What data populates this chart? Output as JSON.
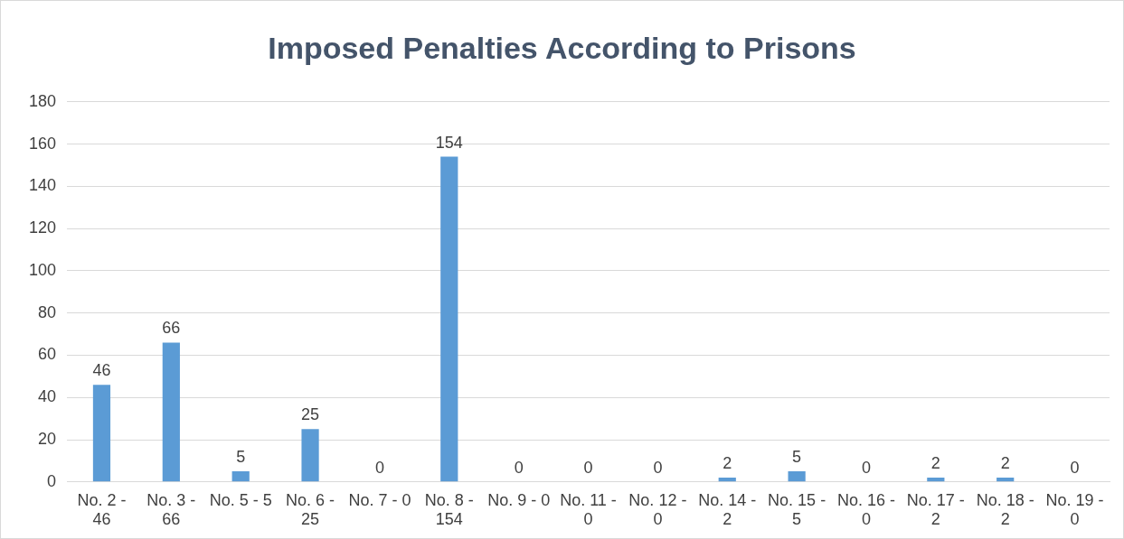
{
  "chart_data": {
    "type": "bar",
    "title": "Imposed Penalties According to Prisons",
    "categories": [
      "No. 2 - 46",
      "No. 3 - 66",
      "No. 5 - 5",
      "No. 6 - 25",
      "No. 7 - 0",
      "No. 8 - 154",
      "No. 9 - 0",
      "No. 11 - 0",
      "No. 12 - 0",
      "No. 14 - 2",
      "No. 15 - 5",
      "No. 16 - 0",
      "No. 17 - 2",
      "No. 18 - 2",
      "No. 19 - 0"
    ],
    "values": [
      46,
      66,
      5,
      25,
      0,
      154,
      0,
      0,
      0,
      2,
      5,
      0,
      2,
      2,
      0
    ],
    "color": "#5b9bd5",
    "ylim": [
      0,
      180
    ],
    "yticks": [
      0,
      20,
      40,
      60,
      80,
      100,
      120,
      140,
      160,
      180
    ],
    "grid": "y",
    "data_labels": true
  }
}
